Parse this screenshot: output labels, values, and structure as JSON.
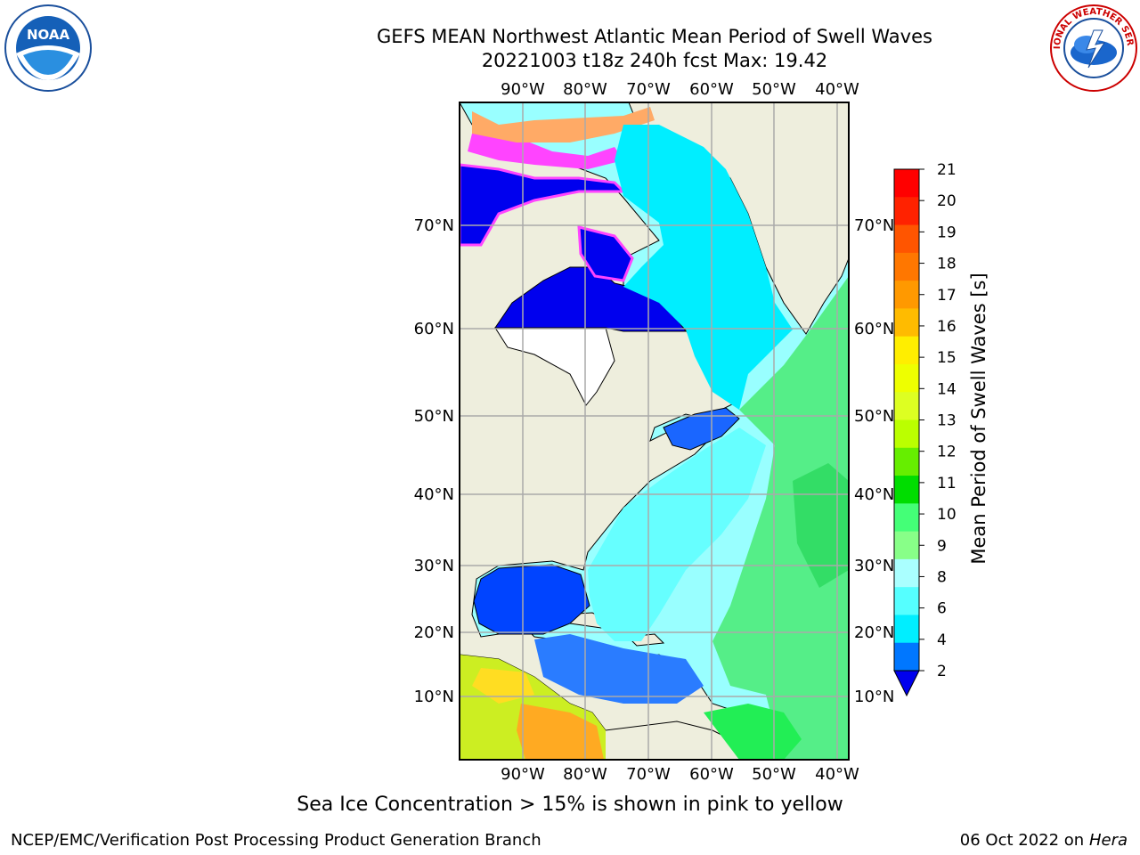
{
  "title": {
    "line1": "GEFS MEAN Northwest Atlantic Mean Period of Swell Waves",
    "line2": "20221003 t18z 240h fcst   Max: 19.42"
  },
  "map": {
    "lon_labels": [
      "90°W",
      "80°W",
      "70°W",
      "60°W",
      "50°W",
      "40°W"
    ],
    "lat_labels": [
      "70°N",
      "60°N",
      "50°N",
      "40°N",
      "30°N",
      "20°N",
      "10°N"
    ],
    "colors": {
      "land": "#eeeedd",
      "ice_region": "#ffffff",
      "grid": "#aaaaaa"
    }
  },
  "colorbar": {
    "label": "Mean Period of Swell Waves [s]",
    "ticks": [
      "21",
      "20",
      "19",
      "18",
      "17",
      "16",
      "15",
      "14",
      "13",
      "12",
      "11",
      "10",
      "9",
      "8",
      "6",
      "4",
      "2"
    ],
    "colors": [
      "#ff0000",
      "#ff2200",
      "#ff5500",
      "#ff7700",
      "#ff9900",
      "#ffbb00",
      "#ffee00",
      "#eeff00",
      "#ddff22",
      "#bbff00",
      "#66ee00",
      "#00dd00",
      "#44ff77",
      "#88ff88",
      "#aaffff",
      "#55ffff",
      "#00eeff",
      "#0077ff"
    ],
    "underflow_color": "#0000ee"
  },
  "footnote": "Sea Ice Concentration > 15% is shown in pink to yellow",
  "credit": "NCEP/EMC/Verification Post Processing Product Generation Branch",
  "date": {
    "text": "06 Oct 2022 on ",
    "host": "Hera"
  },
  "logos": {
    "left": "NOAA",
    "right": "NATIONAL WEATHER SERVICE"
  }
}
